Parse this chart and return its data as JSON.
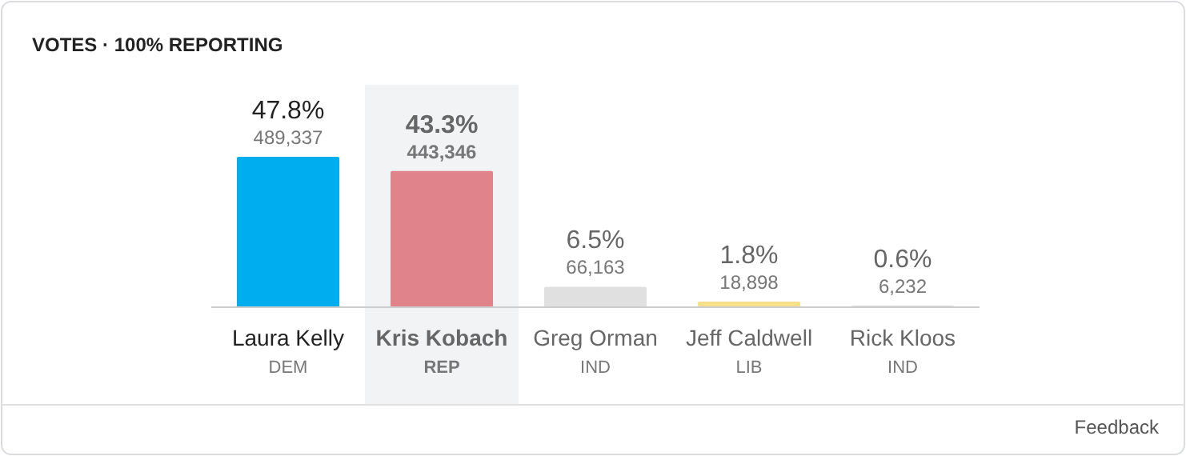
{
  "chart_data": {
    "type": "bar",
    "title": "VOTES · 100% REPORTING",
    "categories": [
      "Laura Kelly\nDEM",
      "Kris Kobach\nREP",
      "Greg Orman\nIND",
      "Jeff Caldwell\nLIB",
      "Rick Kloos\nIND"
    ],
    "values": [
      47.8,
      43.3,
      6.5,
      1.8,
      0.6
    ],
    "colors": [
      "#00aeef",
      "#e0838a",
      "#e0e0e0",
      "#f6e08a",
      "#e0e0e0"
    ],
    "value_labels": [
      "47.8%\n489,337",
      "43.3%\n443,346",
      "6.5%\n66,163",
      "1.8%\n18,898",
      "0.6%\n6,232"
    ],
    "bands": [
      {
        "axis": "x",
        "from": "Kris Kobach\nREP",
        "to": "Kris Kobach\nREP",
        "color": "#f1f3f4"
      }
    ],
    "annotations": [
      "Feedback"
    ]
  }
}
